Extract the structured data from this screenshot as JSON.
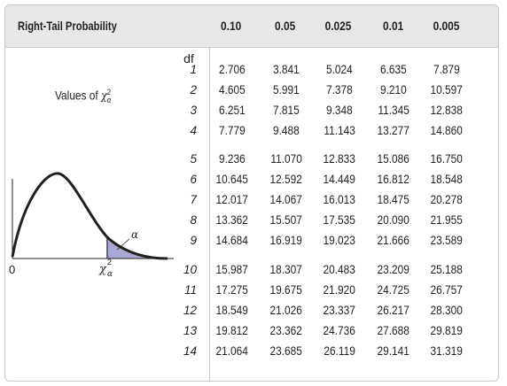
{
  "header": {
    "title": "Right-Tail Probability",
    "columns": [
      "0.10",
      "0.05",
      "0.025",
      "0.01",
      "0.005"
    ]
  },
  "df_label": "df",
  "values_label": {
    "prefix": "Values of ",
    "symbol": "χ",
    "superscript": "2",
    "subscript": "α"
  },
  "figure": {
    "origin_label": "0",
    "x_label_symbol": "χ",
    "x_label_superscript": "2",
    "x_label_subscript": "α",
    "area_label": "α",
    "area_color": "#a9a8d4",
    "curve_color": "#231f20"
  },
  "rows": [
    {
      "df": "1",
      "values": [
        "2.706",
        "3.841",
        "5.024",
        "6.635",
        "7.879"
      ]
    },
    {
      "df": "2",
      "values": [
        "4.605",
        "5.991",
        "7.378",
        "9.210",
        "10.597"
      ]
    },
    {
      "df": "3",
      "values": [
        "6.251",
        "7.815",
        "9.348",
        "11.345",
        "12.838"
      ]
    },
    {
      "df": "4",
      "values": [
        "7.779",
        "9.488",
        "11.143",
        "13.277",
        "14.860"
      ]
    },
    {
      "df": "5",
      "values": [
        "9.236",
        "11.070",
        "12.833",
        "15.086",
        "16.750"
      ]
    },
    {
      "df": "6",
      "values": [
        "10.645",
        "12.592",
        "14.449",
        "16.812",
        "18.548"
      ]
    },
    {
      "df": "7",
      "values": [
        "12.017",
        "14.067",
        "16.013",
        "18.475",
        "20.278"
      ]
    },
    {
      "df": "8",
      "values": [
        "13.362",
        "15.507",
        "17.535",
        "20.090",
        "21.955"
      ]
    },
    {
      "df": "9",
      "values": [
        "14.684",
        "16.919",
        "19.023",
        "21.666",
        "23.589"
      ]
    },
    {
      "df": "10",
      "values": [
        "15.987",
        "18.307",
        "20.483",
        "23.209",
        "25.188"
      ]
    },
    {
      "df": "11",
      "values": [
        "17.275",
        "19.675",
        "21.920",
        "24.725",
        "26.757"
      ]
    },
    {
      "df": "12",
      "values": [
        "18.549",
        "21.026",
        "23.337",
        "26.217",
        "28.300"
      ]
    },
    {
      "df": "13",
      "values": [
        "19.812",
        "23.362",
        "24.736",
        "27.688",
        "29.819"
      ]
    },
    {
      "df": "14",
      "values": [
        "21.064",
        "23.685",
        "26.119",
        "29.141",
        "31.319"
      ]
    }
  ],
  "colors": {
    "header_bg": "#e6e7e8",
    "border": "#c7c8ca",
    "text": "#231f20"
  }
}
